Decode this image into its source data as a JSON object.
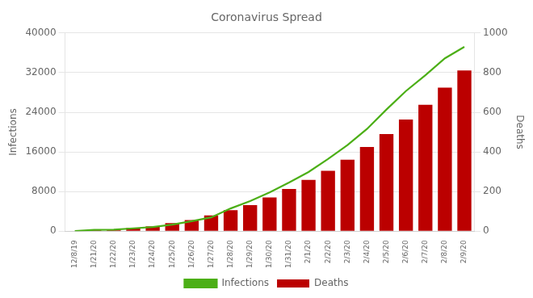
{
  "chart_data": {
    "type": "bar",
    "title": "Coronavirus Spread",
    "categories": [
      "12/8/19",
      "1/21/20",
      "1/22/20",
      "1/23/20",
      "1/24/20",
      "1/25/20",
      "1/26/20",
      "1/27/20",
      "1/28/20",
      "1/29/20",
      "1/30/20",
      "1/31/20",
      "2/1/20",
      "2/2/20",
      "2/3/20",
      "2/4/20",
      "2/5/20",
      "2/6/20",
      "2/7/20",
      "2/8/20",
      "2/9/20"
    ],
    "series": [
      {
        "name": "Infections",
        "type": "line",
        "color": "#4caf17",
        "values": [
          27,
          282,
          314,
          581,
          846,
          1320,
          2014,
          2798,
          4593,
          6065,
          7818,
          9826,
          11953,
          14557,
          17391,
          20630,
          24553,
          28276,
          31481,
          34886,
          37198
        ]
      },
      {
        "name": "Deaths",
        "type": "bar",
        "color": "#bb0000",
        "axis": "y2",
        "values": [
          0,
          6,
          6,
          17,
          25,
          41,
          56,
          80,
          106,
          132,
          170,
          213,
          259,
          305,
          361,
          425,
          490,
          563,
          638,
          724,
          811
        ]
      }
    ],
    "ylabel": "Infections",
    "y2label": "Deaths",
    "ylim": [
      0,
      40000
    ],
    "yticks": [
      0,
      8000,
      16000,
      24000,
      32000,
      40000
    ],
    "y2lim": [
      0,
      1000
    ],
    "y2ticks": [
      0,
      200,
      400,
      600,
      800,
      1000
    ],
    "grid": true,
    "legend": "bottom"
  }
}
